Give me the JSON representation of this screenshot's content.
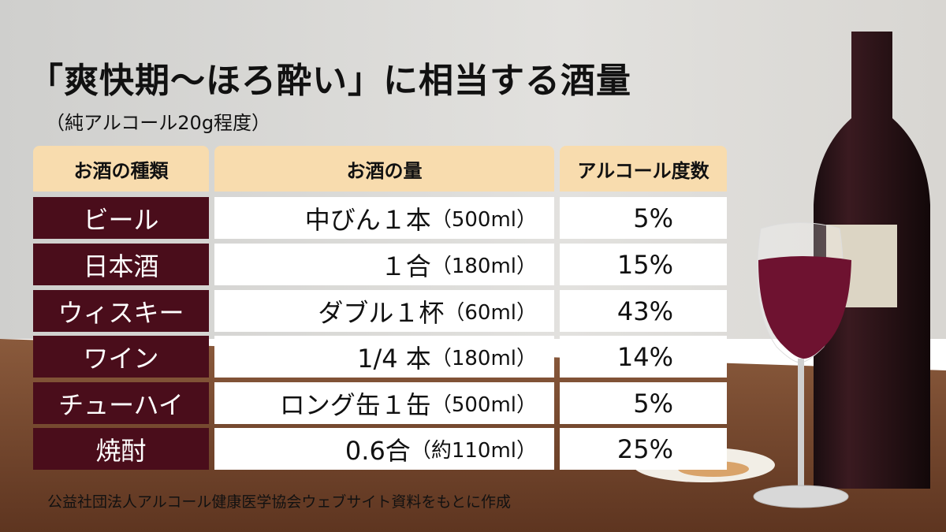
{
  "header": {
    "title": "「爽快期～ほろ酔い」に相当する酒量",
    "subtitle": "（純アルコール20g程度）"
  },
  "table": {
    "columns": [
      "お酒の種類",
      "お酒の量",
      "アルコール度数"
    ],
    "rows": [
      [
        "ビール",
        "中びん１本",
        "（500ml）",
        "5%"
      ],
      [
        "日本酒",
        "１合",
        "（180ml）",
        "15%"
      ],
      [
        "ウィスキー",
        "ダブル１杯",
        "（60ml）",
        "43%"
      ],
      [
        "ワイン",
        "1/4 本",
        "（180ml）",
        "14%"
      ],
      [
        "チューハイ",
        "ロング缶１缶",
        "（500ml）",
        "5%"
      ],
      [
        "焼酎",
        "0.6合",
        "（約110ml）",
        "25%"
      ]
    ]
  },
  "footer": {
    "source": "公益社団法人アルコール健康医学協会ウェブサイト資料をもとに作成"
  }
}
